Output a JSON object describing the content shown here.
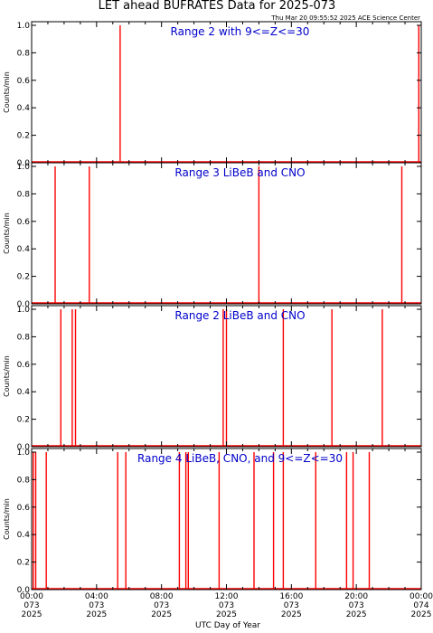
{
  "title": "LET ahead BUFRATES Data for 2025-073",
  "timestamp": "Thu Mar 20 09:55:52 2025 ACE Science Center",
  "ylabel": "Counts/min",
  "xlabel": "UTC Day of Year",
  "colors": {
    "series": "#ff0000",
    "panel_label": "#0000cc",
    "axes": "#000000"
  },
  "chart_data": [
    {
      "type": "line",
      "title": "Range 2 with 9<=Z<=30",
      "ylabel": "Counts/min",
      "ylim": [
        0,
        1.0
      ],
      "xlim_hours": [
        0,
        24
      ],
      "spikes_hours": [
        5.45,
        23.85
      ],
      "spike_value": 1.0
    },
    {
      "type": "line",
      "title": "Range 3 LiBeB and CNO",
      "ylabel": "Counts/min",
      "ylim": [
        0,
        1.0
      ],
      "xlim_hours": [
        0,
        24
      ],
      "spikes_hours": [
        1.45,
        3.55,
        14.0,
        22.8
      ],
      "spike_value": 1.0
    },
    {
      "type": "line",
      "title": "Range 2 LiBeB and CNO",
      "ylabel": "Counts/min",
      "ylim": [
        0,
        1.0
      ],
      "xlim_hours": [
        0,
        24
      ],
      "spikes_hours": [
        1.8,
        2.5,
        2.7,
        11.8,
        12.0,
        15.5,
        18.5,
        21.6
      ],
      "spike_value": 1.0
    },
    {
      "type": "line",
      "title": "Range 4 LiBeB, CNO, and 9<=Z<=30",
      "ylabel": "Counts/min",
      "ylim": [
        0,
        1.0
      ],
      "xlim_hours": [
        0,
        24
      ],
      "spikes_hours": [
        0.1,
        0.25,
        0.9,
        5.3,
        5.8,
        9.1,
        9.5,
        9.65,
        11.55,
        13.7,
        14.9,
        15.5,
        17.5,
        19.4,
        19.8,
        20.8
      ],
      "spike_value": 1.0
    }
  ],
  "y_ticks": [
    "0.0",
    "0.2",
    "0.4",
    "0.6",
    "0.8",
    "1.0"
  ],
  "x_ticks": [
    {
      "time": "00:00",
      "doy": "073",
      "year": "2025"
    },
    {
      "time": "04:00",
      "doy": "073",
      "year": "2025"
    },
    {
      "time": "08:00",
      "doy": "073",
      "year": "2025"
    },
    {
      "time": "12:00",
      "doy": "073",
      "year": "2025"
    },
    {
      "time": "16:00",
      "doy": "073",
      "year": "2025"
    },
    {
      "time": "20:00",
      "doy": "073",
      "year": "2025"
    },
    {
      "time": "00:00",
      "doy": "074",
      "year": "2025"
    }
  ]
}
